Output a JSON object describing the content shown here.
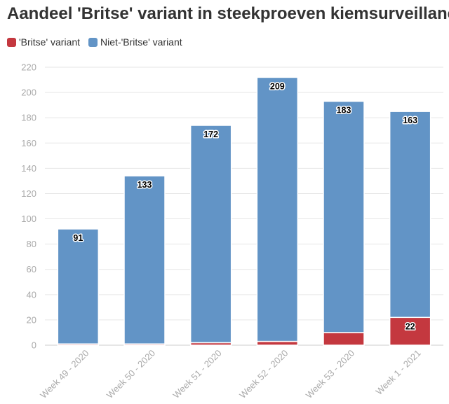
{
  "title": "Aandeel 'Britse' variant in steekproeven kiemsurveillance",
  "legend": [
    {
      "label": "'Britse' variant",
      "color": "#c4383f"
    },
    {
      "label": "Niet-'Britse' variant",
      "color": "#6294c6"
    }
  ],
  "chart_data": {
    "type": "bar",
    "stacked": true,
    "categories": [
      "Week 49 - 2020",
      "Week 50 - 2020",
      "Week 51 - 2020",
      "Week 52 - 2020",
      "Week 53 - 2020",
      "Week 1 - 2021"
    ],
    "series": [
      {
        "name": "'Britse' variant",
        "color": "#c4383f",
        "values": [
          1,
          1,
          2,
          3,
          10,
          22
        ]
      },
      {
        "name": "Niet-'Britse' variant",
        "color": "#6294c6",
        "values": [
          91,
          133,
          172,
          209,
          183,
          163
        ]
      }
    ],
    "ylim": [
      0,
      220
    ],
    "yticks": [
      0,
      20,
      40,
      60,
      80,
      100,
      120,
      140,
      160,
      180,
      200,
      220
    ],
    "grid": true,
    "legend_position": "top-left",
    "data_labels": {
      "Niet-'Britse' variant": [
        "91",
        "133",
        "172",
        "209",
        "183",
        "163"
      ],
      "'Britse' variant": [
        "",
        "",
        "",
        "",
        "",
        "22"
      ]
    }
  }
}
